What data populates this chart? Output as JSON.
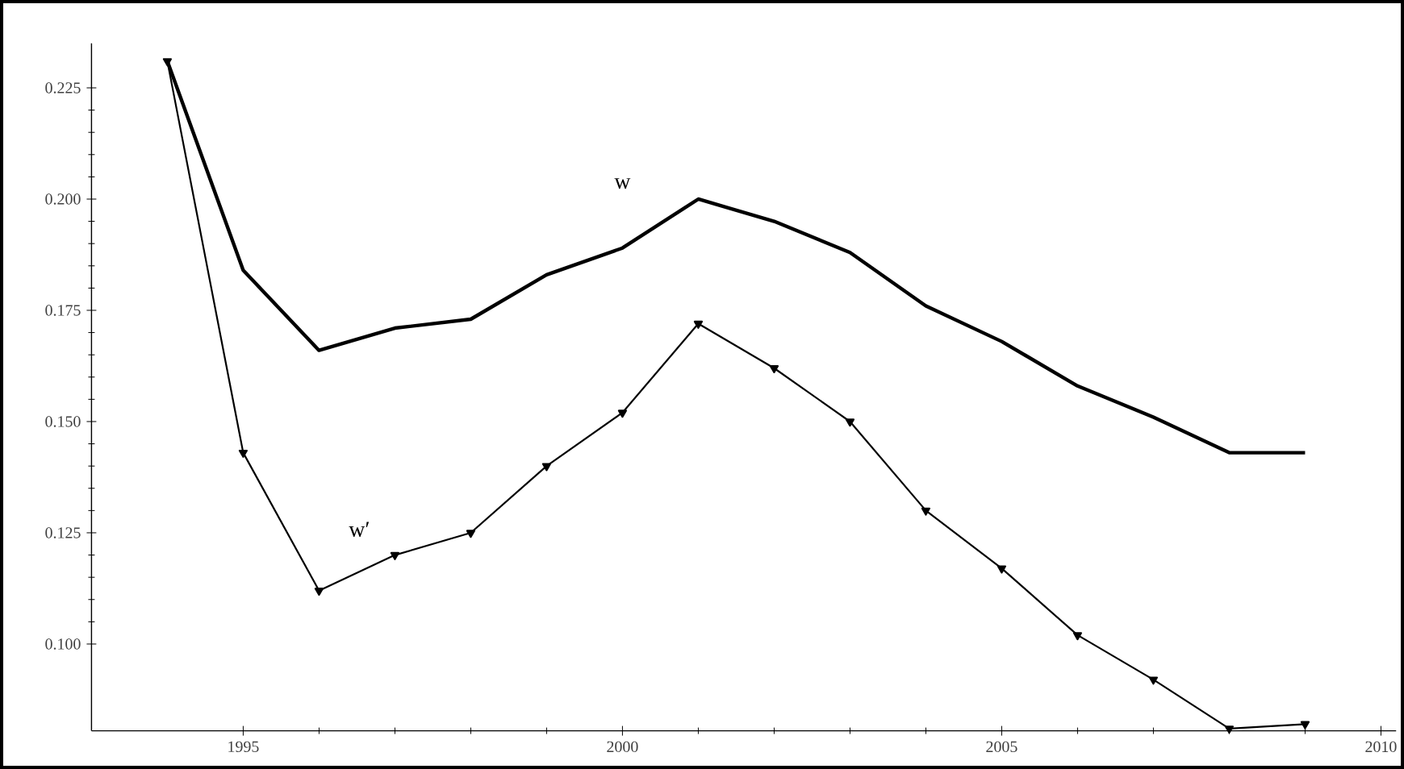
{
  "chart_data": {
    "type": "line",
    "x": [
      1994,
      1995,
      1996,
      1997,
      1998,
      1999,
      2000,
      2001,
      2002,
      2003,
      2004,
      2005,
      2006,
      2007,
      2008,
      2009
    ],
    "series": [
      {
        "name": "w",
        "color": "#000000",
        "marker": "none",
        "values": [
          0.231,
          0.184,
          0.166,
          0.171,
          0.173,
          0.183,
          0.189,
          0.2,
          0.195,
          0.188,
          0.176,
          0.168,
          0.158,
          0.151,
          0.143,
          0.143
        ]
      },
      {
        "name": "w′",
        "color": "#000000",
        "marker": "triangle",
        "values": [
          0.231,
          0.143,
          0.112,
          0.12,
          0.125,
          0.14,
          0.152,
          0.172,
          0.162,
          0.15,
          0.13,
          0.117,
          0.102,
          0.092,
          0.081,
          0.082
        ]
      }
    ],
    "xlim": [
      1993,
      2010.2
    ],
    "ylim": [
      0.0805,
      0.235
    ],
    "xticks": [
      1995,
      2000,
      2005,
      2010
    ],
    "yticks": [
      {
        "value": 0.1,
        "label": "0.100"
      },
      0.125,
      {
        "value": 0.15,
        "label": "0.150"
      },
      0.175,
      {
        "value": 0.2,
        "label": "0.200"
      },
      0.225
    ],
    "grid": false,
    "line_style": "solid"
  }
}
